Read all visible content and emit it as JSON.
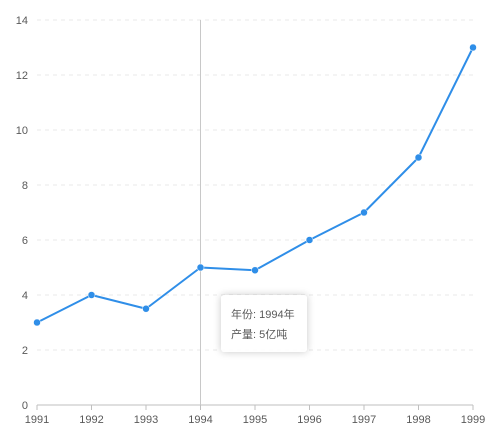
{
  "chart_data": {
    "type": "line",
    "categories": [
      "1991",
      "1992",
      "1993",
      "1994",
      "1995",
      "1996",
      "1997",
      "1998",
      "1999"
    ],
    "series": [
      {
        "values": [
          3,
          4,
          3.5,
          5,
          4.9,
          6,
          7,
          9,
          13
        ]
      }
    ],
    "ylim": [
      0,
      14
    ],
    "yticks": [
      0,
      2,
      4,
      6,
      8,
      10,
      12,
      14
    ],
    "grid": "horizontal dashed",
    "colors": {
      "line": "#2f8ee8",
      "grid": "#e8e8e8",
      "axis": "#bfbfbf",
      "crosshair": "#c8c8c8"
    },
    "tooltip": {
      "category_index": 3,
      "year_label": "年份",
      "year_value": "1994年",
      "value_label": "产量",
      "value_text": "5亿吨"
    }
  }
}
